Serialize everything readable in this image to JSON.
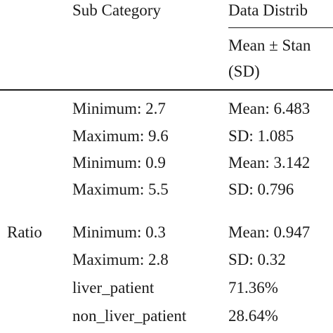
{
  "header": {
    "sub_category": "Sub Category",
    "data_distribution": "Data Distrib",
    "mean_std_line1": "Mean ± Stan",
    "mean_std_line2": "(SD)"
  },
  "row_label": "Ratio",
  "rows": [
    {
      "sub": "Minimum: 2.7",
      "dist": "Mean: 6.483"
    },
    {
      "sub": "Maximum: 9.6",
      "dist": "SD: 1.085"
    },
    {
      "sub": "Minimum: 0.9",
      "dist": "Mean: 3.142"
    },
    {
      "sub": "Maximum: 5.5",
      "dist": "SD: 0.796"
    },
    {
      "sub": "Minimum: 0.3",
      "dist": "Mean: 0.947"
    },
    {
      "sub": "Maximum: 2.8",
      "dist": "SD: 0.32"
    },
    {
      "sub": "liver_patient",
      "dist": "71.36%"
    },
    {
      "sub": "non_liver_patient",
      "dist": "28.64%"
    }
  ]
}
